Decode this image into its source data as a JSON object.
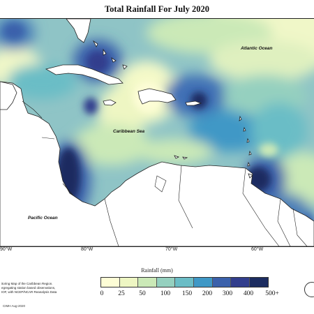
{
  "title": "Total Rainfall For July 2020",
  "labels": {
    "atlantic": "Atlantic Ocean",
    "caribbean": "Caribbean Sea",
    "pacific": "Pacific Ocean"
  },
  "longitude_ticks": [
    "90°W",
    "80°W",
    "70°W",
    "60°W"
  ],
  "colorbar": {
    "title": "Rainfall (mm)",
    "values": [
      "0",
      "25",
      "50",
      "100",
      "150",
      "200",
      "300",
      "400",
      "500+"
    ],
    "colors": [
      "#fdfdd6",
      "#eef6c3",
      "#cbe9b7",
      "#95d0bf",
      "#6bbdc6",
      "#3f98c6",
      "#3b61ab",
      "#323e8d",
      "#1c2c60"
    ]
  },
  "notes": [
    "itoring Map of the Caribbean Region.",
    "egregating station based observations,",
    "IOF, with NCEP/NCAR Reanalysis Data"
  ],
  "credit": "CIMH Aug-2020",
  "colors": {
    "land": "#ffffff",
    "coast": "#222222",
    "ocean_base": "#8fc4c6"
  }
}
